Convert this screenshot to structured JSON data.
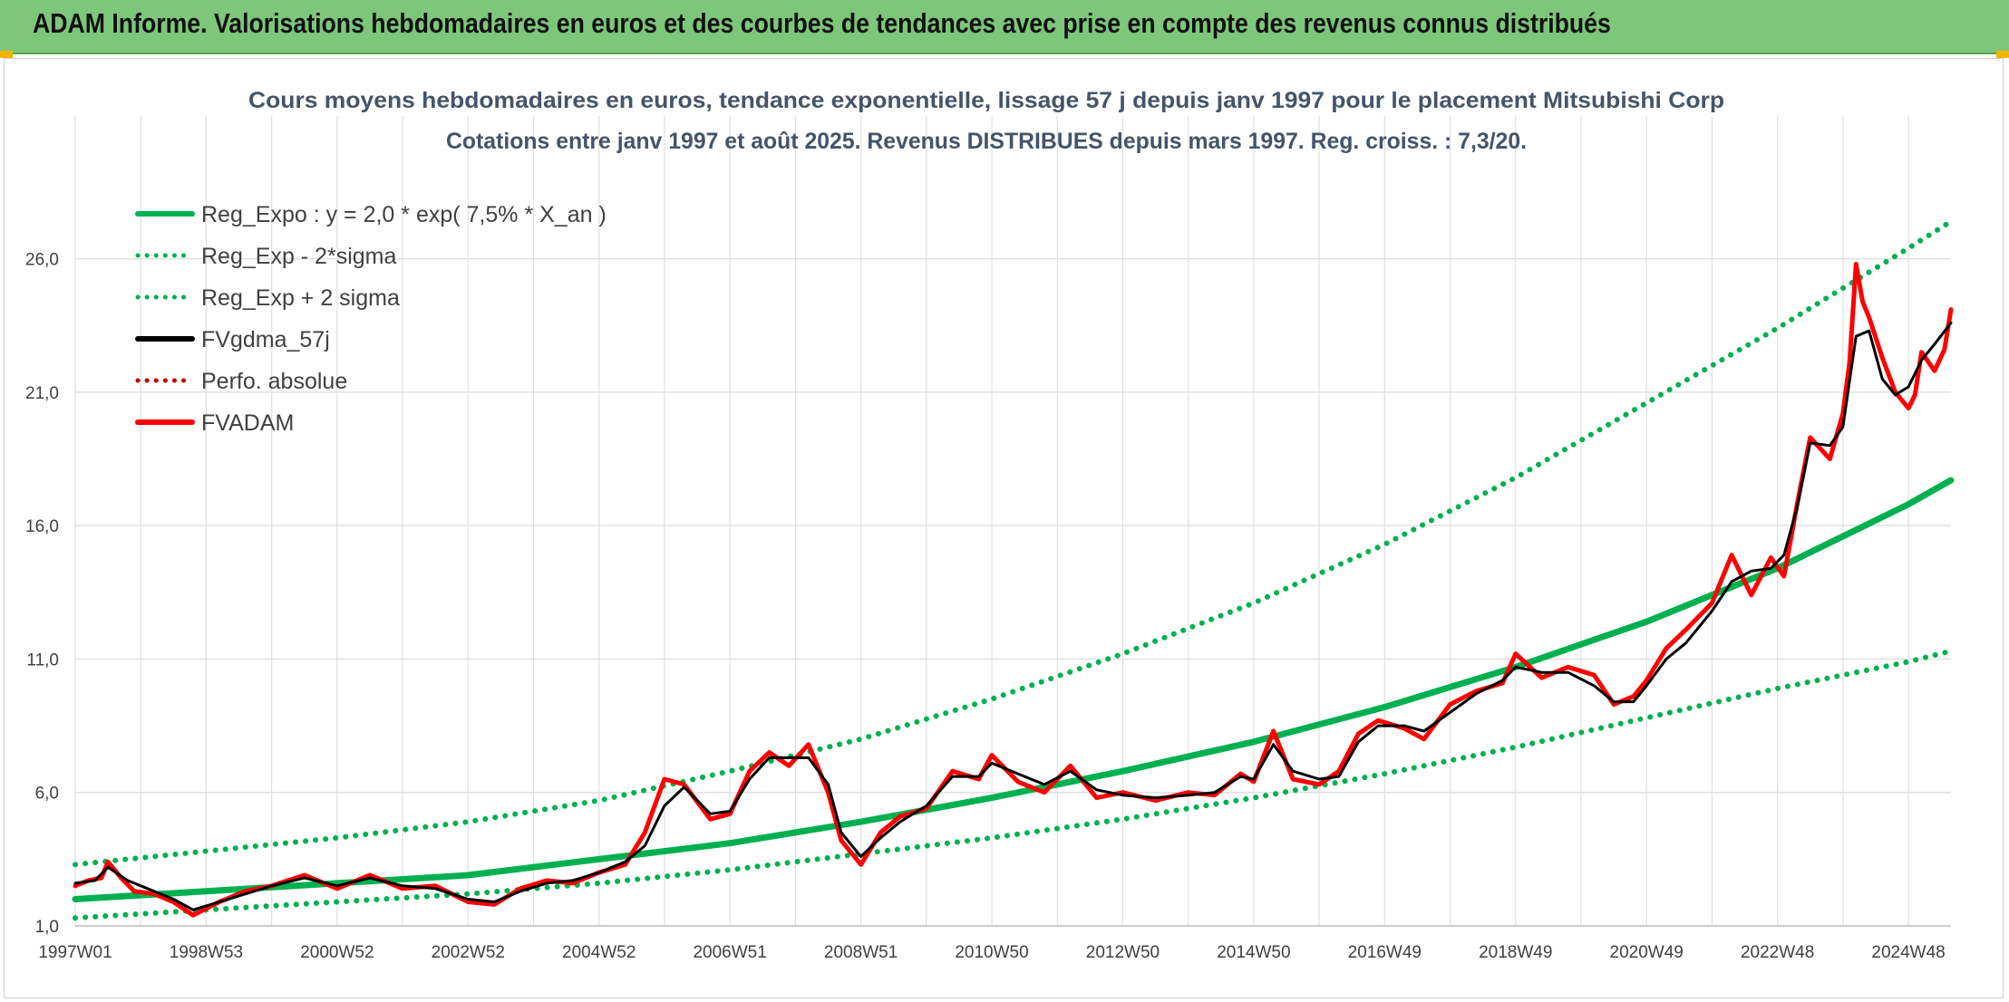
{
  "header": {
    "title": "ADAM Informe. Valorisations hebdomadaires en euros et des courbes de tendances avec prise en compte des revenus connus distribués"
  },
  "colors": {
    "banner": "#7dc67a",
    "reg_expo": "#00b050",
    "fvgdma": "#000000",
    "fvadam": "#ff0000",
    "perfo": "#c00000",
    "grid": "#e0e0e0"
  },
  "chart_data": {
    "type": "line",
    "title": "Cours moyens hebdomadaires en euros, tendance exponentielle, lissage 57 j depuis janv 1997 pour le placement Mitsubishi Corp",
    "subtitle": "Cotations entre janv 1997 et août 2025. Revenus DISTRIBUES depuis mars 1997. Reg. croiss. : 7,3/20.",
    "xlabel": "",
    "ylabel": "",
    "x_range": [
      1997.0,
      2025.65
    ],
    "ylim": [
      1.0,
      28.5
    ],
    "y_ticks": [
      "1,0",
      "6,0",
      "11,0",
      "16,0",
      "21,0",
      "26,0"
    ],
    "y_tick_values": [
      1,
      6,
      11,
      16,
      21,
      26
    ],
    "x_ticks": [
      "1997W01",
      "1998W53",
      "2000W52",
      "2002W52",
      "2004W52",
      "2006W51",
      "2008W51",
      "2010W50",
      "2012W50",
      "2014W50",
      "2016W49",
      "2018W49",
      "2020W49",
      "2022W48",
      "2024W48"
    ],
    "x_tick_values": [
      1997.0,
      1999.0,
      2001.0,
      2003.0,
      2005.0,
      2007.0,
      2009.0,
      2011.0,
      2013.0,
      2015.0,
      2017.0,
      2019.0,
      2021.0,
      2023.0,
      2025.0
    ],
    "grid": true,
    "legend_position": "top-left",
    "legend": [
      {
        "key": "reg_expo",
        "label": "Reg_Expo : y = 2,0 * exp( 7,5% *  X_an )",
        "style": "solid",
        "color": "#00b050"
      },
      {
        "key": "reg_lower",
        "label": "Reg_Exp - 2*sigma",
        "style": "dotted",
        "color": "#00b050"
      },
      {
        "key": "reg_upper",
        "label": "Reg_Exp + 2 sigma",
        "style": "dotted",
        "color": "#00b050"
      },
      {
        "key": "fvgdma",
        "label": "FVgdma_57j",
        "style": "solid",
        "color": "#000000"
      },
      {
        "key": "perfo",
        "label": "Perfo. absolue",
        "style": "dotted",
        "color": "#c00000"
      },
      {
        "key": "fvadam",
        "label": "FVADAM",
        "style": "solid",
        "color": "#ff0000"
      }
    ],
    "series": [
      {
        "key": "reg_expo",
        "name": "Reg_Expo : y = 2,0 * exp( 7,5% *  X_an )",
        "x": [
          1997.0,
          1999.0,
          2001.0,
          2003.0,
          2005.0,
          2007.0,
          2009.0,
          2011.0,
          2013.0,
          2015.0,
          2017.0,
          2019.0,
          2021.0,
          2023.0,
          2025.0,
          2025.65
        ],
        "y": [
          2.0,
          2.3,
          2.6,
          2.9,
          3.5,
          4.1,
          4.9,
          5.8,
          6.8,
          7.9,
          9.2,
          10.7,
          12.4,
          14.4,
          16.8,
          17.7
        ]
      },
      {
        "key": "reg_lower",
        "name": "Reg_Exp - 2*sigma",
        "x": [
          1997.0,
          1999.0,
          2001.0,
          2003.0,
          2005.0,
          2007.0,
          2009.0,
          2011.0,
          2013.0,
          2015.0,
          2017.0,
          2019.0,
          2021.0,
          2023.0,
          2025.0,
          2025.65
        ],
        "y": [
          1.3,
          1.6,
          1.9,
          2.2,
          2.6,
          3.1,
          3.7,
          4.3,
          5.0,
          5.8,
          6.7,
          7.7,
          8.8,
          9.9,
          10.9,
          11.3
        ]
      },
      {
        "key": "reg_upper",
        "name": "Reg_Exp + 2 sigma",
        "x": [
          1997.0,
          1999.0,
          2001.0,
          2003.0,
          2005.0,
          2007.0,
          2009.0,
          2011.0,
          2013.0,
          2015.0,
          2017.0,
          2019.0,
          2021.0,
          2023.0,
          2025.0,
          2025.65
        ],
        "y": [
          3.3,
          3.8,
          4.3,
          4.9,
          5.7,
          6.8,
          8.0,
          9.5,
          11.2,
          13.1,
          15.3,
          17.8,
          20.6,
          23.4,
          26.4,
          27.4
        ]
      },
      {
        "key": "fvgdma",
        "name": "FVgdma_57j",
        "x": [
          1997.0,
          1997.3,
          1997.5,
          1997.8,
          1998.2,
          1998.5,
          1998.8,
          1999.2,
          1999.6,
          2000.0,
          2000.5,
          2001.0,
          2001.5,
          2002.0,
          2002.5,
          2003.0,
          2003.4,
          2003.8,
          2004.2,
          2004.6,
          2005.0,
          2005.4,
          2005.7,
          2006.0,
          2006.3,
          2006.7,
          2007.0,
          2007.3,
          2007.6,
          2007.9,
          2008.2,
          2008.5,
          2008.7,
          2009.0,
          2009.3,
          2009.6,
          2010.0,
          2010.4,
          2010.8,
          2011.0,
          2011.4,
          2011.8,
          2012.2,
          2012.6,
          2013.0,
          2013.5,
          2014.0,
          2014.4,
          2014.8,
          2015.0,
          2015.3,
          2015.6,
          2016.0,
          2016.3,
          2016.6,
          2016.9,
          2017.3,
          2017.6,
          2018.0,
          2018.4,
          2018.8,
          2019.0,
          2019.4,
          2019.8,
          2020.2,
          2020.5,
          2020.8,
          2021.0,
          2021.3,
          2021.6,
          2022.0,
          2022.3,
          2022.6,
          2022.9,
          2023.1,
          2023.3,
          2023.5,
          2023.8,
          2024.0,
          2024.2,
          2024.4,
          2024.6,
          2024.8,
          2025.0,
          2025.2,
          2025.4,
          2025.65
        ],
        "y": [
          2.6,
          2.7,
          3.2,
          2.7,
          2.3,
          2.0,
          1.6,
          1.9,
          2.2,
          2.5,
          2.8,
          2.5,
          2.8,
          2.5,
          2.4,
          2.0,
          1.9,
          2.3,
          2.6,
          2.7,
          3.0,
          3.4,
          4.0,
          5.5,
          6.2,
          5.2,
          5.3,
          6.5,
          7.3,
          7.3,
          7.3,
          6.3,
          4.5,
          3.6,
          4.3,
          4.9,
          5.5,
          6.6,
          6.6,
          7.1,
          6.7,
          6.3,
          6.8,
          6.1,
          5.9,
          5.8,
          5.9,
          6.0,
          6.6,
          6.5,
          7.8,
          6.8,
          6.5,
          6.6,
          7.9,
          8.5,
          8.5,
          8.3,
          9.0,
          9.7,
          10.2,
          10.7,
          10.5,
          10.5,
          10.0,
          9.4,
          9.4,
          10.0,
          11.0,
          11.6,
          12.8,
          13.9,
          14.3,
          14.4,
          14.9,
          16.7,
          19.1,
          19.0,
          19.7,
          23.1,
          23.3,
          21.5,
          20.9,
          21.2,
          22.2,
          22.8,
          23.6
        ]
      },
      {
        "key": "fvadam",
        "name": "FVADAM",
        "x": [
          1997.0,
          1997.2,
          1997.4,
          1997.5,
          1997.7,
          1997.9,
          1998.2,
          1998.5,
          1998.8,
          1999.2,
          1999.6,
          2000.0,
          2000.5,
          2001.0,
          2001.5,
          2002.0,
          2002.5,
          2003.0,
          2003.4,
          2003.8,
          2004.2,
          2004.6,
          2005.0,
          2005.4,
          2005.7,
          2006.0,
          2006.3,
          2006.7,
          2007.0,
          2007.3,
          2007.6,
          2007.9,
          2008.2,
          2008.5,
          2008.7,
          2009.0,
          2009.3,
          2009.6,
          2010.0,
          2010.4,
          2010.8,
          2011.0,
          2011.4,
          2011.8,
          2012.2,
          2012.6,
          2013.0,
          2013.5,
          2014.0,
          2014.4,
          2014.8,
          2015.0,
          2015.3,
          2015.6,
          2016.0,
          2016.3,
          2016.6,
          2016.9,
          2017.3,
          2017.6,
          2018.0,
          2018.4,
          2018.8,
          2019.0,
          2019.4,
          2019.8,
          2020.2,
          2020.5,
          2020.8,
          2021.0,
          2021.3,
          2021.6,
          2022.0,
          2022.3,
          2022.6,
          2022.9,
          2023.1,
          2023.3,
          2023.5,
          2023.8,
          2024.0,
          2024.1,
          2024.2,
          2024.3,
          2024.4,
          2024.6,
          2024.8,
          2025.0,
          2025.1,
          2025.2,
          2025.4,
          2025.55,
          2025.65
        ],
        "y": [
          2.5,
          2.7,
          2.8,
          3.4,
          2.8,
          2.3,
          2.2,
          1.9,
          1.4,
          1.9,
          2.3,
          2.5,
          2.9,
          2.4,
          2.9,
          2.4,
          2.5,
          1.9,
          1.8,
          2.4,
          2.7,
          2.6,
          3.0,
          3.3,
          4.5,
          6.5,
          6.3,
          5.0,
          5.2,
          6.8,
          7.5,
          7.0,
          7.8,
          6.0,
          4.2,
          3.3,
          4.5,
          5.1,
          5.4,
          6.8,
          6.5,
          7.4,
          6.4,
          6.0,
          7.0,
          5.8,
          6.0,
          5.7,
          6.0,
          5.9,
          6.7,
          6.4,
          8.3,
          6.5,
          6.3,
          6.8,
          8.2,
          8.7,
          8.4,
          8.0,
          9.3,
          9.8,
          10.1,
          11.2,
          10.3,
          10.7,
          10.4,
          9.3,
          9.6,
          10.2,
          11.4,
          12.1,
          13.1,
          14.9,
          13.4,
          14.8,
          14.1,
          16.8,
          19.3,
          18.5,
          20.2,
          22.1,
          25.8,
          24.4,
          23.8,
          22.3,
          21.0,
          20.4,
          20.9,
          22.5,
          21.8,
          22.6,
          24.1
        ]
      }
    ]
  }
}
